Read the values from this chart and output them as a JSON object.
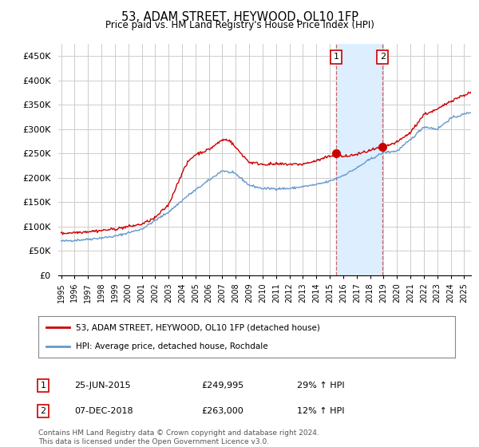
{
  "title": "53, ADAM STREET, HEYWOOD, OL10 1FP",
  "subtitle": "Price paid vs. HM Land Registry's House Price Index (HPI)",
  "ylabel_ticks": [
    "£0",
    "£50K",
    "£100K",
    "£150K",
    "£200K",
    "£250K",
    "£300K",
    "£350K",
    "£400K",
    "£450K"
  ],
  "ytick_values": [
    0,
    50000,
    100000,
    150000,
    200000,
    250000,
    300000,
    350000,
    400000,
    450000
  ],
  "ylim": [
    0,
    475000
  ],
  "xlim_start": 1994.8,
  "xlim_end": 2025.5,
  "sale1_x": 2015.48,
  "sale1_y": 249995,
  "sale2_x": 2018.93,
  "sale2_y": 263000,
  "shade_x1": 2015.48,
  "shade_x2": 2018.93,
  "legend_label_red": "53, ADAM STREET, HEYWOOD, OL10 1FP (detached house)",
  "legend_label_blue": "HPI: Average price, detached house, Rochdale",
  "annotation1_num": "1",
  "annotation1_date": "25-JUN-2015",
  "annotation1_price": "£249,995",
  "annotation1_hpi": "29% ↑ HPI",
  "annotation2_num": "2",
  "annotation2_date": "07-DEC-2018",
  "annotation2_price": "£263,000",
  "annotation2_hpi": "12% ↑ HPI",
  "footer": "Contains HM Land Registry data © Crown copyright and database right 2024.\nThis data is licensed under the Open Government Licence v3.0.",
  "red_color": "#cc0000",
  "blue_color": "#6699cc",
  "shade_color": "#ddeeff",
  "grid_color": "#cccccc",
  "background_color": "#ffffff"
}
